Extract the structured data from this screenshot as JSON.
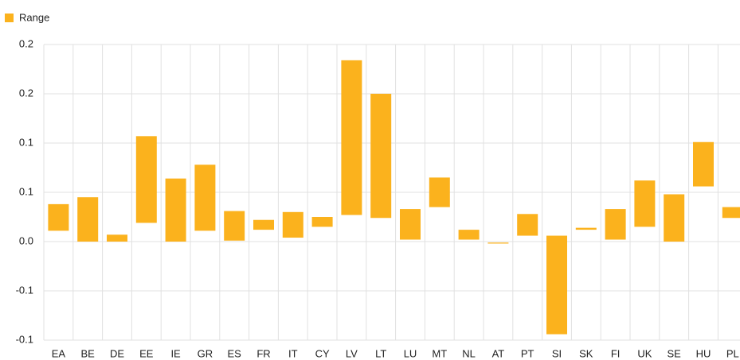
{
  "chart_data": {
    "type": "range-bar",
    "categories": [
      "EA",
      "BE",
      "DE",
      "EE",
      "IE",
      "GR",
      "ES",
      "FR",
      "IT",
      "CY",
      "LV",
      "LT",
      "LU",
      "MT",
      "NL",
      "AT",
      "PT",
      "SI",
      "SK",
      "FI",
      "UK",
      "SE",
      "HU",
      "PL"
    ],
    "series": [
      {
        "name": "Range",
        "color": "#fbb21d",
        "low": [
          0.011,
          0.0,
          0.0,
          0.019,
          0.0,
          0.011,
          0.001,
          0.012,
          0.004,
          0.015,
          0.027,
          0.024,
          0.002,
          0.035,
          0.002,
          -0.002,
          0.006,
          -0.094,
          0.012,
          0.002,
          0.015,
          0.0,
          0.056,
          0.024
        ],
        "high": [
          0.038,
          0.045,
          0.007,
          0.107,
          0.064,
          0.078,
          0.031,
          0.022,
          0.03,
          0.025,
          0.184,
          0.15,
          0.033,
          0.065,
          0.012,
          -0.001,
          0.028,
          0.006,
          0.014,
          0.033,
          0.062,
          0.048,
          0.101,
          0.035
        ]
      }
    ],
    "ylim": [
      -0.1,
      0.2
    ],
    "yticks": [
      {
        "value": -0.1,
        "label": "-0.1"
      },
      {
        "value": -0.05,
        "label": "-0.1"
      },
      {
        "value": 0,
        "label": "0.0"
      },
      {
        "value": 0.05,
        "label": "0.1"
      },
      {
        "value": 0.1,
        "label": "0.1"
      },
      {
        "value": 0.15,
        "label": "0.2"
      },
      {
        "value": 0.2,
        "label": "0.2"
      }
    ],
    "grid": true
  }
}
